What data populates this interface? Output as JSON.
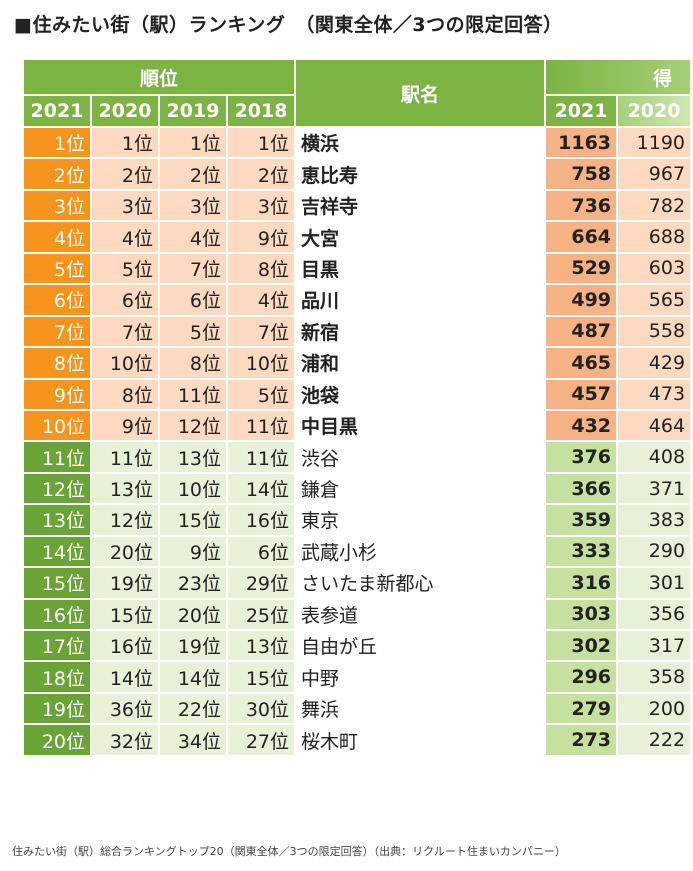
{
  "title": "■住みたい街（駅）ランキング　（関東全体／3つの限定回答）",
  "headers": {
    "rank_group": "順位",
    "station": "駅名",
    "score_group": "得",
    "years": [
      "2021",
      "2020",
      "2019",
      "2018"
    ],
    "score_years": [
      "2021",
      "2020"
    ]
  },
  "rows": [
    {
      "r2021": "1位",
      "r2020": "1位",
      "r2019": "1位",
      "r2018": "1位",
      "name": "横浜",
      "s2021": "1163",
      "s2020": "1190"
    },
    {
      "r2021": "2位",
      "r2020": "2位",
      "r2019": "2位",
      "r2018": "2位",
      "name": "恵比寿",
      "s2021": "758",
      "s2020": "967"
    },
    {
      "r2021": "3位",
      "r2020": "3位",
      "r2019": "3位",
      "r2018": "3位",
      "name": "吉祥寺",
      "s2021": "736",
      "s2020": "782"
    },
    {
      "r2021": "4位",
      "r2020": "4位",
      "r2019": "4位",
      "r2018": "9位",
      "name": "大宮",
      "s2021": "664",
      "s2020": "688"
    },
    {
      "r2021": "5位",
      "r2020": "5位",
      "r2019": "7位",
      "r2018": "8位",
      "name": "目黒",
      "s2021": "529",
      "s2020": "603"
    },
    {
      "r2021": "6位",
      "r2020": "6位",
      "r2019": "6位",
      "r2018": "4位",
      "name": "品川",
      "s2021": "499",
      "s2020": "565"
    },
    {
      "r2021": "7位",
      "r2020": "7位",
      "r2019": "5位",
      "r2018": "7位",
      "name": "新宿",
      "s2021": "487",
      "s2020": "558"
    },
    {
      "r2021": "8位",
      "r2020": "10位",
      "r2019": "8位",
      "r2018": "10位",
      "name": "浦和",
      "s2021": "465",
      "s2020": "429"
    },
    {
      "r2021": "9位",
      "r2020": "8位",
      "r2019": "11位",
      "r2018": "5位",
      "name": "池袋",
      "s2021": "457",
      "s2020": "473"
    },
    {
      "r2021": "10位",
      "r2020": "9位",
      "r2019": "12位",
      "r2018": "11位",
      "name": "中目黒",
      "s2021": "432",
      "s2020": "464"
    },
    {
      "r2021": "11位",
      "r2020": "11位",
      "r2019": "13位",
      "r2018": "11位",
      "name": "渋谷",
      "s2021": "376",
      "s2020": "408"
    },
    {
      "r2021": "12位",
      "r2020": "13位",
      "r2019": "10位",
      "r2018": "14位",
      "name": "鎌倉",
      "s2021": "366",
      "s2020": "371"
    },
    {
      "r2021": "13位",
      "r2020": "12位",
      "r2019": "15位",
      "r2018": "16位",
      "name": "東京",
      "s2021": "359",
      "s2020": "383"
    },
    {
      "r2021": "14位",
      "r2020": "20位",
      "r2019": "9位",
      "r2018": "6位",
      "name": "武蔵小杉",
      "s2021": "333",
      "s2020": "290"
    },
    {
      "r2021": "15位",
      "r2020": "19位",
      "r2019": "23位",
      "r2018": "29位",
      "name": "さいたま新都心",
      "s2021": "316",
      "s2020": "301"
    },
    {
      "r2021": "16位",
      "r2020": "15位",
      "r2019": "20位",
      "r2018": "25位",
      "name": "表参道",
      "s2021": "303",
      "s2020": "356"
    },
    {
      "r2021": "17位",
      "r2020": "16位",
      "r2019": "19位",
      "r2018": "13位",
      "name": "自由が丘",
      "s2021": "302",
      "s2020": "317"
    },
    {
      "r2021": "18位",
      "r2020": "14位",
      "r2019": "14位",
      "r2018": "15位",
      "name": "中野",
      "s2021": "296",
      "s2020": "358"
    },
    {
      "r2021": "19位",
      "r2020": "36位",
      "r2019": "22位",
      "r2018": "30位",
      "name": "舞浜",
      "s2021": "279",
      "s2020": "200"
    },
    {
      "r2021": "20位",
      "r2020": "32位",
      "r2019": "34位",
      "r2018": "27位",
      "name": "桜木町",
      "s2021": "273",
      "s2020": "222"
    }
  ],
  "footnote": "住みたい街（駅）総合ランキングトップ20（関東全体／3つの限定回答）（出典：リクルート住まいカンパニー）"
}
